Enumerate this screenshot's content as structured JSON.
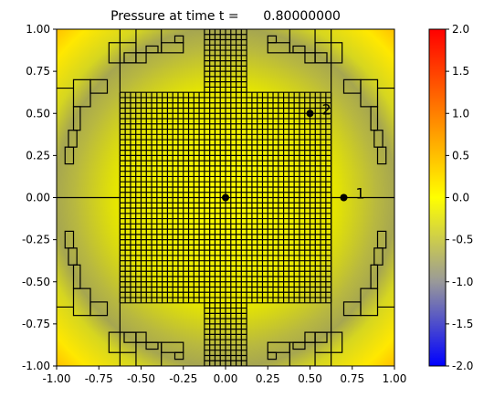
{
  "chart_data": {
    "type": "heatmap",
    "title": "Pressure at time t =      0.80000000",
    "xlim": [
      -1.0,
      1.0
    ],
    "ylim": [
      -1.0,
      1.0
    ],
    "xticks": [
      "-1.00",
      "-0.75",
      "-0.50",
      "-0.25",
      "0.00",
      "0.25",
      "0.50",
      "0.75",
      "1.00"
    ],
    "yticks": [
      "1.00",
      "0.75",
      "0.50",
      "0.25",
      "0.00",
      "-0.25",
      "-0.50",
      "-0.75",
      "-1.00"
    ],
    "colorbar": {
      "range": [
        -2.0,
        2.0
      ],
      "ticks": [
        "2.0",
        "1.5",
        "1.0",
        "0.5",
        "0.0",
        "-0.5",
        "-1.0",
        "-1.5",
        "-2.0"
      ],
      "colors": [
        "#0000ff",
        "#999999",
        "#ffff00",
        "#ff0000"
      ]
    },
    "markers": [
      {
        "label": "1",
        "x": 0.7,
        "y": 0.0
      },
      {
        "label": "2",
        "x": 0.5,
        "y": 0.5
      },
      {
        "label": "",
        "x": 0.0,
        "y": 0.0
      }
    ],
    "field_description_values": {
      "center_value": 0.0,
      "ring_value": -0.6,
      "corner_value": 0.35
    },
    "mesh": {
      "refined_region": [
        -0.625,
        0.625,
        -0.625,
        0.625
      ],
      "vertical_strip": [
        -0.125,
        0.125,
        -1.0,
        1.0
      ],
      "refined_cells": 40
    },
    "grid": false
  }
}
